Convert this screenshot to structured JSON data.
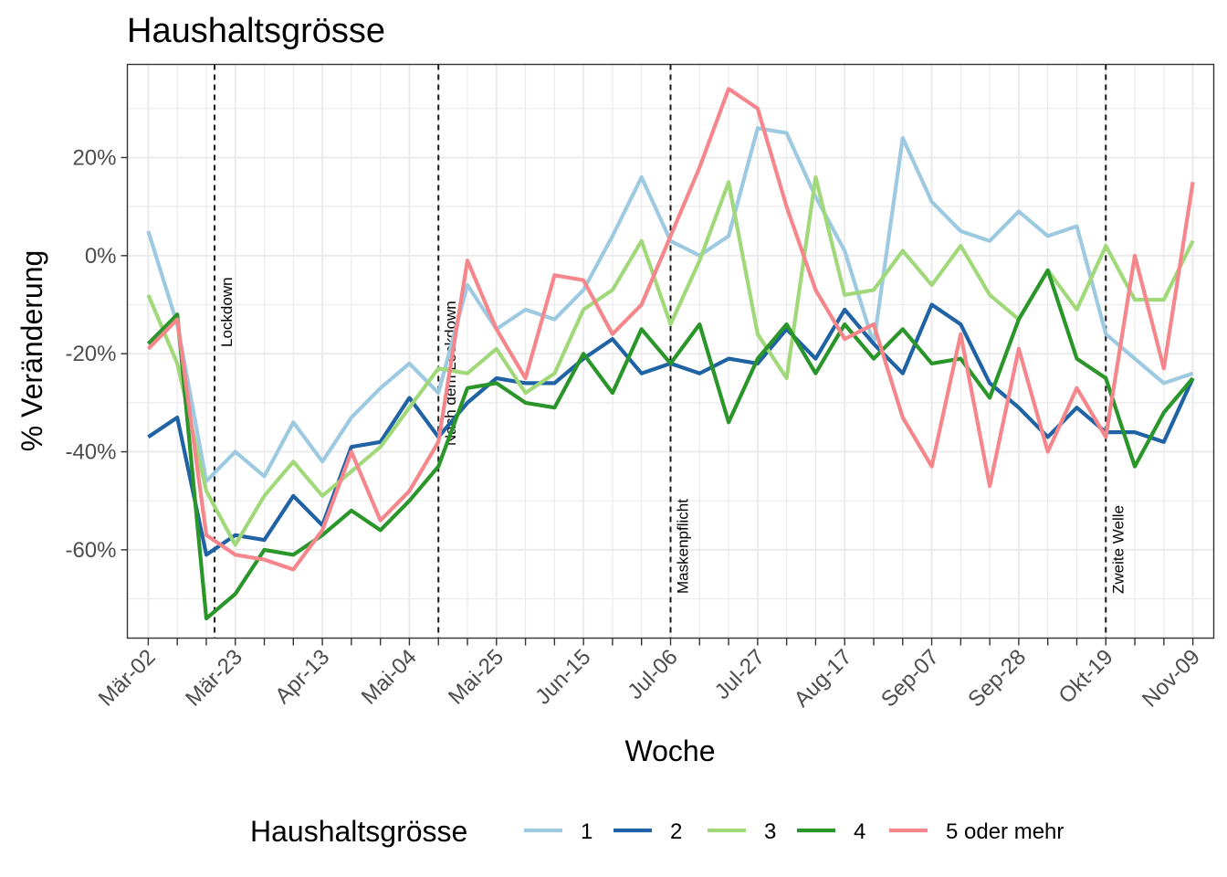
{
  "chart_data": {
    "type": "line",
    "title": "Haushaltsgrösse",
    "xlabel": "Woche",
    "ylabel": "% Veränderung",
    "x_dates": [
      "2020-03-02",
      "2020-03-09",
      "2020-03-16",
      "2020-03-23",
      "2020-03-30",
      "2020-04-06",
      "2020-04-13",
      "2020-04-20",
      "2020-04-27",
      "2020-05-04",
      "2020-05-11",
      "2020-05-18",
      "2020-05-25",
      "2020-06-01",
      "2020-06-08",
      "2020-06-15",
      "2020-06-22",
      "2020-06-29",
      "2020-07-06",
      "2020-07-13",
      "2020-07-20",
      "2020-07-27",
      "2020-08-03",
      "2020-08-10",
      "2020-08-17",
      "2020-08-24",
      "2020-08-31",
      "2020-09-07",
      "2020-09-14",
      "2020-09-21",
      "2020-09-28",
      "2020-10-05",
      "2020-10-12",
      "2020-10-19",
      "2020-10-26",
      "2020-11-02",
      "2020-11-09"
    ],
    "x_tick_labels": [
      "Mär-02",
      "Mär-23",
      "Apr-13",
      "Mai-04",
      "Mai-25",
      "Jun-15",
      "Jul-06",
      "Jul-27",
      "Aug-17",
      "Sep-07",
      "Sep-28",
      "Okt-19",
      "Nov-09"
    ],
    "y_ticks": [
      -60,
      -40,
      -20,
      0,
      20
    ],
    "y_tick_labels": [
      "-60%",
      "-40%",
      "-20%",
      "0%",
      "20%"
    ],
    "ylim": [
      -78,
      39
    ],
    "grid": true,
    "legend_position": "bottom",
    "events": [
      {
        "label": "Lockdown",
        "date": "2020-03-18"
      },
      {
        "label": "Nach dem Lockdown",
        "date": "2020-05-11"
      },
      {
        "label": "Maskenpflicht",
        "date": "2020-07-06"
      },
      {
        "label": "Zweite Welle",
        "date": "2020-10-19"
      }
    ],
    "legend_title": "Haushaltsgrösse",
    "series": [
      {
        "name": "1",
        "color": "#9ecae1",
        "values": [
          5,
          -14,
          -46,
          -40,
          -45,
          -34,
          -42,
          -33,
          -27,
          -22,
          -28,
          -6,
          -15,
          -11,
          -13,
          -7,
          4,
          16,
          3,
          0,
          4,
          26,
          25,
          12,
          1,
          -18,
          24,
          11,
          5,
          3,
          9,
          4,
          6,
          -16,
          -21,
          -26,
          -24
        ]
      },
      {
        "name": "2",
        "color": "#1f63a5",
        "values": [
          -37,
          -33,
          -61,
          -57,
          -58,
          -49,
          -55,
          -39,
          -38,
          -29,
          -37,
          -30,
          -25,
          -26,
          -26,
          -21,
          -17,
          -24,
          -22,
          -24,
          -21,
          -22,
          -15,
          -21,
          -11,
          -18,
          -24,
          -10,
          -14,
          -26,
          -31,
          -37,
          -31,
          -36,
          -36,
          -38,
          -25
        ]
      },
      {
        "name": "3",
        "color": "#a1d97a",
        "values": [
          -8,
          -22,
          -48,
          -59,
          -49,
          -42,
          -49,
          -44,
          -39,
          -31,
          -23,
          -24,
          -19,
          -28,
          -24,
          -11,
          -7,
          3,
          -14,
          -1,
          15,
          -16,
          -25,
          16,
          -8,
          -7,
          1,
          -6,
          2,
          -8,
          -13,
          -3,
          -11,
          2,
          -9,
          -9,
          3
        ]
      },
      {
        "name": "4",
        "color": "#2a962a",
        "values": [
          -18,
          -12,
          -74,
          -69,
          -60,
          -61,
          -57,
          -52,
          -56,
          -50,
          -43,
          -27,
          -26,
          -30,
          -31,
          -20,
          -28,
          -15,
          -22,
          -14,
          -34,
          -21,
          -14,
          -24,
          -14,
          -21,
          -15,
          -22,
          -21,
          -29,
          -13,
          -3,
          -21,
          -25,
          -43,
          -32,
          -25
        ]
      },
      {
        "name": "5 oder mehr",
        "color": "#f4868c",
        "values": [
          -19,
          -13,
          -57,
          -61,
          -62,
          -64,
          -56,
          -40,
          -54,
          -48,
          -38,
          -1,
          -15,
          -25,
          -4,
          -5,
          -16,
          -10,
          4,
          18,
          34,
          30,
          10,
          -7,
          -17,
          -14,
          -33,
          -43,
          -16,
          -47,
          -19,
          -40,
          -27,
          -37,
          0,
          -23,
          15
        ]
      }
    ]
  }
}
